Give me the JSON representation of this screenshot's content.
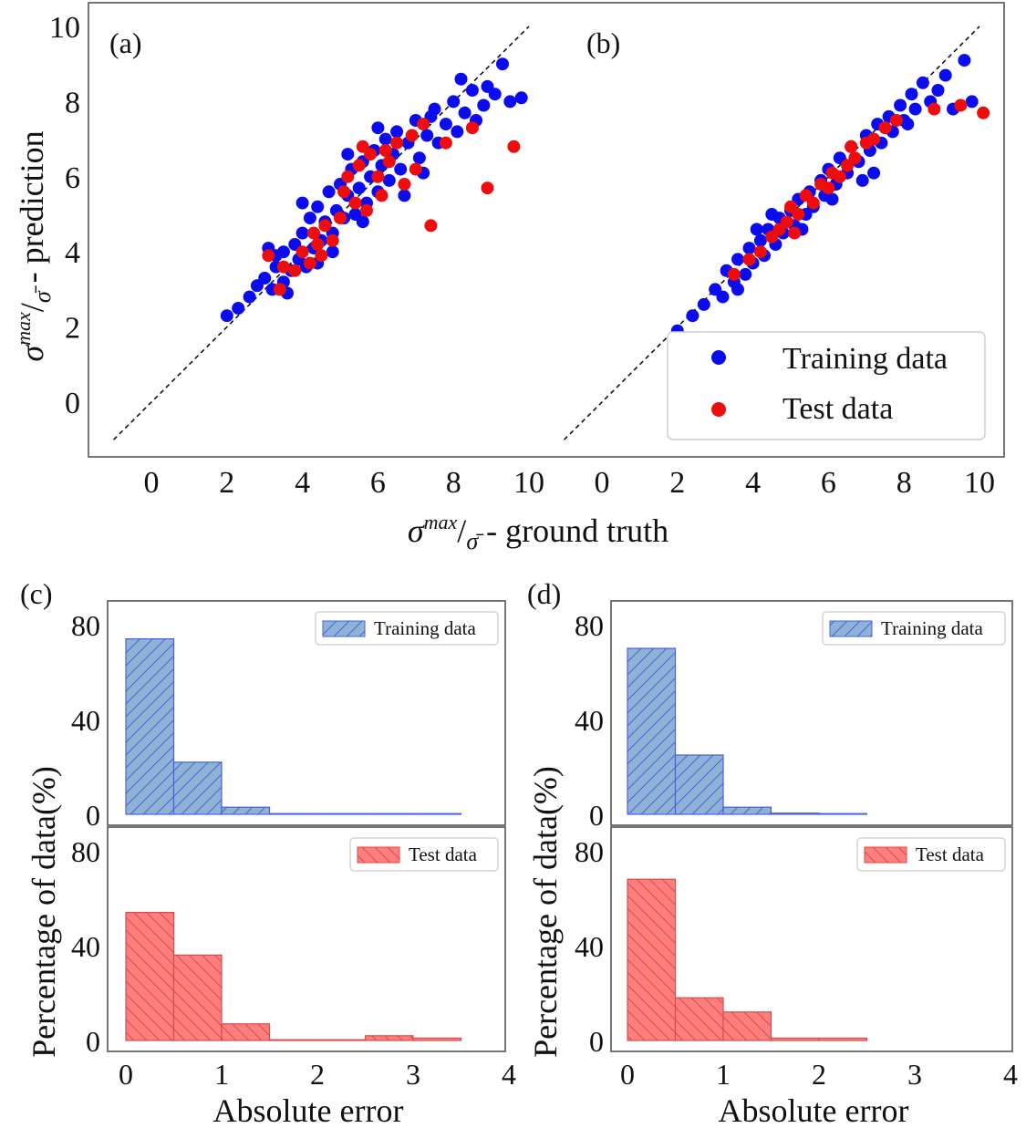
{
  "chart_data": [
    {
      "id": "a",
      "type": "scatter",
      "panel_label": "(a)",
      "xlabel": "σ^max/σ̄ - ground truth",
      "ylabel": "σ^max/σ̄ - prediction",
      "xlim": [
        -1.5,
        10.5
      ],
      "ylim": [
        -1.5,
        10.5
      ],
      "xticks": [
        0,
        2,
        4,
        6,
        8,
        10
      ],
      "yticks": [
        0,
        2,
        4,
        6,
        8,
        10
      ],
      "reference_line": "y = x (dashed)",
      "legend": null,
      "series": [
        {
          "name": "Training data",
          "color": "#0b0bef",
          "points": [
            [
              2.0,
              2.3
            ],
            [
              2.3,
              2.5
            ],
            [
              2.6,
              2.8
            ],
            [
              2.8,
              3.1
            ],
            [
              3.0,
              3.3
            ],
            [
              3.2,
              3.0
            ],
            [
              3.3,
              3.6
            ],
            [
              3.5,
              3.2
            ],
            [
              3.5,
              4.0
            ],
            [
              3.7,
              3.5
            ],
            [
              3.8,
              4.2
            ],
            [
              3.9,
              3.8
            ],
            [
              4.0,
              4.5
            ],
            [
              4.1,
              3.6
            ],
            [
              4.2,
              4.9
            ],
            [
              4.3,
              4.1
            ],
            [
              4.4,
              5.2
            ],
            [
              4.5,
              4.3
            ],
            [
              4.6,
              4.8
            ],
            [
              4.7,
              5.6
            ],
            [
              4.8,
              4.5
            ],
            [
              4.9,
              5.1
            ],
            [
              5.0,
              5.8
            ],
            [
              5.1,
              4.9
            ],
            [
              5.2,
              5.5
            ],
            [
              5.3,
              6.2
            ],
            [
              5.4,
              5.0
            ],
            [
              5.5,
              5.7
            ],
            [
              5.6,
              6.4
            ],
            [
              5.7,
              5.3
            ],
            [
              5.8,
              6.0
            ],
            [
              5.9,
              6.7
            ],
            [
              6.0,
              5.6
            ],
            [
              6.1,
              6.3
            ],
            [
              6.2,
              7.0
            ],
            [
              6.3,
              5.9
            ],
            [
              6.4,
              6.6
            ],
            [
              6.5,
              7.2
            ],
            [
              6.6,
              6.2
            ],
            [
              6.8,
              6.9
            ],
            [
              7.0,
              7.5
            ],
            [
              7.1,
              6.5
            ],
            [
              7.3,
              7.1
            ],
            [
              7.5,
              7.8
            ],
            [
              7.6,
              6.9
            ],
            [
              7.8,
              7.4
            ],
            [
              8.0,
              8.0
            ],
            [
              8.1,
              7.2
            ],
            [
              8.3,
              7.7
            ],
            [
              8.5,
              8.3
            ],
            [
              8.6,
              7.5
            ],
            [
              8.8,
              7.9
            ],
            [
              8.9,
              8.4
            ],
            [
              9.1,
              8.2
            ],
            [
              9.3,
              9.0
            ],
            [
              9.5,
              8.0
            ],
            [
              9.8,
              8.1
            ],
            [
              3.1,
              4.1
            ],
            [
              3.6,
              2.9
            ],
            [
              4.4,
              3.7
            ],
            [
              5.6,
              4.8
            ],
            [
              6.7,
              5.5
            ],
            [
              7.2,
              6.1
            ],
            [
              4.0,
              5.3
            ],
            [
              5.2,
              6.6
            ],
            [
              3.3,
              3.9
            ],
            [
              4.8,
              4.0
            ],
            [
              6.0,
              7.3
            ],
            [
              7.4,
              7.6
            ],
            [
              8.2,
              8.6
            ]
          ]
        },
        {
          "name": "Test data",
          "color": "#ee0c0c",
          "points": [
            [
              3.1,
              3.9
            ],
            [
              3.4,
              3.0
            ],
            [
              3.5,
              3.6
            ],
            [
              3.8,
              3.5
            ],
            [
              4.0,
              4.0
            ],
            [
              4.2,
              3.7
            ],
            [
              4.4,
              4.2
            ],
            [
              4.5,
              3.9
            ],
            [
              4.6,
              4.7
            ],
            [
              4.8,
              4.3
            ],
            [
              5.0,
              4.9
            ],
            [
              5.1,
              5.6
            ],
            [
              5.2,
              6.0
            ],
            [
              5.4,
              5.3
            ],
            [
              5.5,
              6.3
            ],
            [
              5.7,
              5.1
            ],
            [
              5.8,
              6.6
            ],
            [
              6.0,
              6.0
            ],
            [
              6.1,
              5.5
            ],
            [
              6.3,
              6.4
            ],
            [
              6.5,
              6.9
            ],
            [
              6.7,
              5.8
            ],
            [
              6.9,
              7.1
            ],
            [
              7.0,
              6.2
            ],
            [
              7.2,
              7.4
            ],
            [
              7.4,
              4.7
            ],
            [
              7.8,
              6.9
            ],
            [
              8.5,
              7.3
            ],
            [
              8.9,
              5.7
            ],
            [
              9.6,
              6.8
            ],
            [
              5.6,
              6.8
            ],
            [
              4.3,
              4.5
            ],
            [
              6.2,
              6.7
            ]
          ]
        }
      ]
    },
    {
      "id": "b",
      "type": "scatter",
      "panel_label": "(b)",
      "xlim": [
        -1.5,
        10.5
      ],
      "ylim": [
        -1.5,
        10.5
      ],
      "xticks": [
        0,
        2,
        4,
        6,
        8,
        10
      ],
      "reference_line": "y = x (dashed)",
      "legend": {
        "position": "lower-right",
        "entries": [
          {
            "label": "Training data",
            "color": "#0b0bef"
          },
          {
            "label": "Test data",
            "color": "#ee0c0c"
          }
        ]
      },
      "series": [
        {
          "name": "Training data",
          "color": "#0b0bef",
          "points": [
            [
              2.0,
              1.9
            ],
            [
              2.4,
              2.3
            ],
            [
              2.7,
              2.6
            ],
            [
              3.0,
              3.0
            ],
            [
              3.2,
              2.8
            ],
            [
              3.3,
              3.5
            ],
            [
              3.5,
              3.2
            ],
            [
              3.6,
              3.8
            ],
            [
              3.8,
              3.4
            ],
            [
              3.9,
              4.1
            ],
            [
              4.0,
              3.7
            ],
            [
              4.2,
              4.3
            ],
            [
              4.3,
              3.9
            ],
            [
              4.4,
              4.6
            ],
            [
              4.6,
              4.2
            ],
            [
              4.7,
              4.9
            ],
            [
              4.8,
              4.5
            ],
            [
              5.0,
              5.1
            ],
            [
              5.1,
              4.7
            ],
            [
              5.2,
              5.4
            ],
            [
              5.4,
              5.0
            ],
            [
              5.5,
              5.6
            ],
            [
              5.6,
              5.2
            ],
            [
              5.8,
              5.9
            ],
            [
              5.9,
              5.5
            ],
            [
              6.0,
              6.2
            ],
            [
              6.2,
              5.8
            ],
            [
              6.3,
              6.5
            ],
            [
              6.5,
              6.1
            ],
            [
              6.6,
              6.8
            ],
            [
              6.8,
              6.4
            ],
            [
              7.0,
              7.1
            ],
            [
              7.1,
              6.7
            ],
            [
              7.3,
              7.4
            ],
            [
              7.4,
              6.9
            ],
            [
              7.6,
              7.6
            ],
            [
              7.7,
              7.2
            ],
            [
              7.9,
              7.9
            ],
            [
              8.0,
              7.5
            ],
            [
              8.2,
              8.2
            ],
            [
              8.3,
              7.8
            ],
            [
              8.5,
              8.5
            ],
            [
              8.7,
              8.0
            ],
            [
              8.9,
              8.3
            ],
            [
              9.1,
              8.7
            ],
            [
              9.3,
              7.8
            ],
            [
              9.6,
              9.1
            ],
            [
              9.8,
              8.0
            ],
            [
              3.6,
              3.0
            ],
            [
              4.1,
              4.6
            ],
            [
              5.3,
              4.6
            ],
            [
              6.1,
              5.4
            ],
            [
              7.2,
              6.1
            ],
            [
              8.1,
              7.4
            ],
            [
              6.9,
              5.9
            ],
            [
              4.5,
              5.0
            ]
          ]
        },
        {
          "name": "Test data",
          "color": "#ee0c0c",
          "points": [
            [
              3.5,
              3.4
            ],
            [
              3.9,
              3.8
            ],
            [
              4.2,
              4.0
            ],
            [
              4.5,
              4.4
            ],
            [
              4.7,
              4.6
            ],
            [
              4.9,
              4.8
            ],
            [
              5.0,
              5.2
            ],
            [
              5.2,
              5.0
            ],
            [
              5.4,
              5.5
            ],
            [
              5.6,
              5.3
            ],
            [
              5.8,
              5.8
            ],
            [
              6.0,
              5.7
            ],
            [
              6.1,
              6.1
            ],
            [
              6.3,
              6.0
            ],
            [
              6.5,
              6.3
            ],
            [
              6.7,
              6.5
            ],
            [
              7.0,
              6.9
            ],
            [
              7.2,
              7.0
            ],
            [
              7.5,
              7.3
            ],
            [
              7.8,
              7.5
            ],
            [
              8.8,
              7.8
            ],
            [
              9.5,
              7.9
            ],
            [
              10.1,
              7.7
            ],
            [
              5.1,
              4.5
            ],
            [
              6.6,
              6.8
            ]
          ]
        }
      ]
    },
    {
      "id": "c",
      "type": "bar",
      "panel_label": "(c)",
      "xlabel": "Absolute error",
      "ylabel": "Percentage of data(%)",
      "bin_edges": [
        0,
        0.5,
        1,
        1.5,
        2,
        2.5,
        3,
        3.5
      ],
      "xlim": [
        -0.15,
        4
      ],
      "xticks": [
        0,
        1,
        2,
        3,
        4
      ],
      "ylim": [
        0,
        90
      ],
      "yticks": [
        0,
        40,
        80
      ],
      "series": [
        {
          "name": "Training data",
          "values": [
            74,
            22,
            3,
            0,
            0,
            0,
            0
          ],
          "color": "#8fb3d4",
          "edge": "#4b60e0",
          "hatch": "/"
        },
        {
          "name": "Test data",
          "values": [
            54,
            36,
            7,
            0,
            0,
            2,
            1
          ],
          "color": "#ff7f7f",
          "edge": "#d94b4b",
          "hatch": "\\"
        }
      ]
    },
    {
      "id": "d",
      "type": "bar",
      "panel_label": "(d)",
      "xlabel": "Absolute error",
      "ylabel": "Percentage of data(%)",
      "bin_edges": [
        0,
        0.5,
        1,
        1.5,
        2,
        2.5
      ],
      "xlim": [
        -0.15,
        4
      ],
      "xticks": [
        0,
        1,
        2,
        3,
        4
      ],
      "ylim": [
        0,
        90
      ],
      "yticks": [
        0,
        40,
        80
      ],
      "series": [
        {
          "name": "Training data",
          "values": [
            70,
            25,
            3,
            0.5,
            0
          ],
          "color": "#8fb3d4",
          "edge": "#4b60e0",
          "hatch": "/"
        },
        {
          "name": "Test data",
          "values": [
            68,
            18,
            12,
            1,
            1
          ],
          "color": "#ff7f7f",
          "edge": "#d94b4b",
          "hatch": "\\"
        }
      ]
    }
  ],
  "scatter_axis": {
    "xlabel_main": "σ",
    "xlabel_sup": "max",
    "xlabel_den": "σ̄",
    "xlabel_rest": " - ground truth",
    "ylabel_main": "σ",
    "ylabel_sup": "max",
    "ylabel_den": "σ̄",
    "ylabel_rest": " - prediction"
  }
}
